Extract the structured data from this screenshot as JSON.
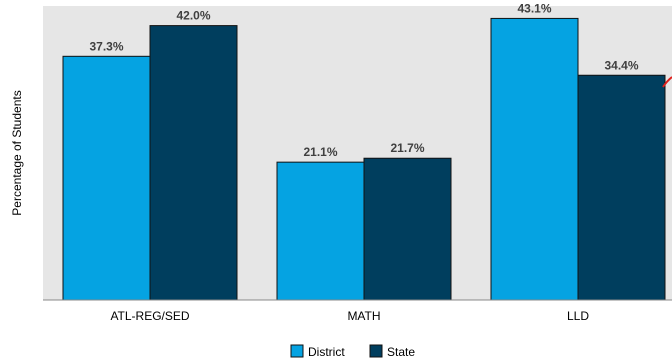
{
  "chart_data": {
    "type": "bar",
    "title": "",
    "xlabel": "",
    "ylabel": "Percentage of Students",
    "ylim": [
      0,
      45
    ],
    "grid": false,
    "legend_position": "bottom",
    "categories": [
      "ATL-REG/SED",
      "MATH",
      "LLD"
    ],
    "series": [
      {
        "name": "District",
        "values": [
          37.3,
          21.1,
          43.1
        ],
        "labels": [
          "37.3%",
          "21.1%",
          "43.1%"
        ],
        "color": "#05a3e2"
      },
      {
        "name": "State",
        "values": [
          42.0,
          21.7,
          34.4
        ],
        "labels": [
          "42.0%",
          "21.7%",
          "34.4%"
        ],
        "color": "#003e5e"
      }
    ],
    "plot_background": "#e6e6e6",
    "stray_mark_color": "#e0201c"
  }
}
